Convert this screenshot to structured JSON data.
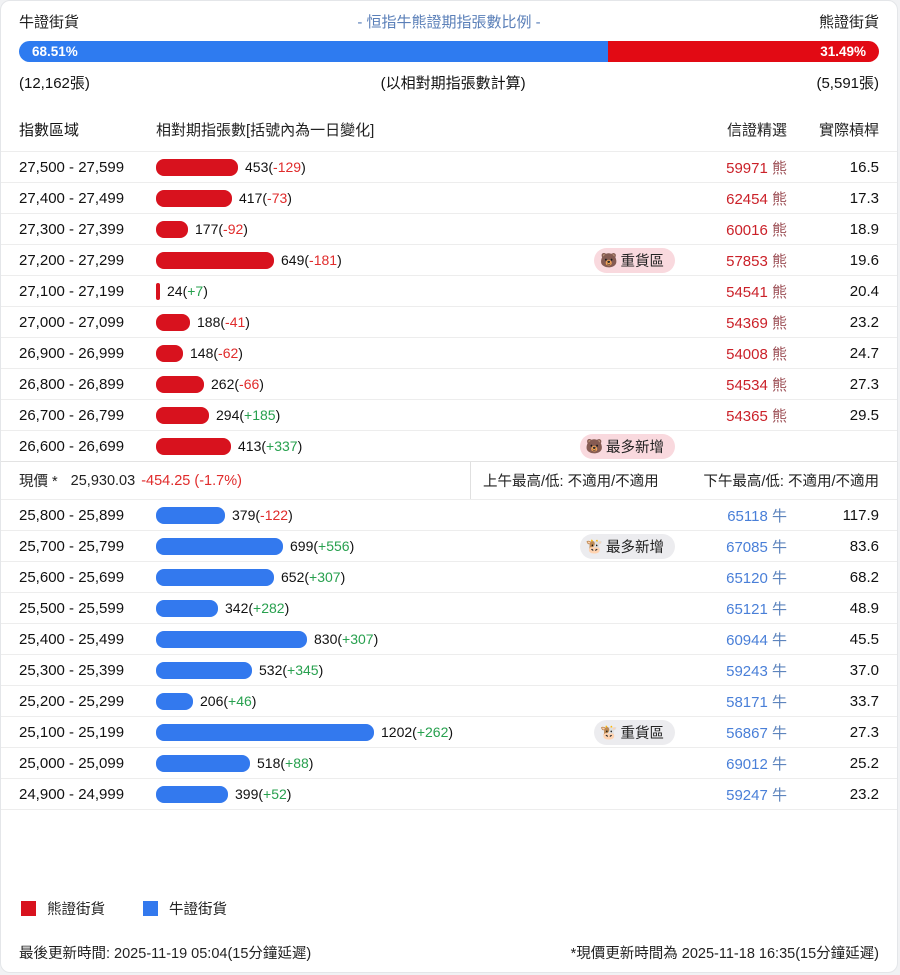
{
  "header": {
    "left_label": "牛證街貨",
    "title": "- 恒指牛熊證期指張數比例 -",
    "right_label": "熊證街貨",
    "bull_pct": "68.51%",
    "bear_pct": "31.49%",
    "bull_contracts": "(12,162張)",
    "center_note": "(以相對期指張數計算)",
    "bear_contracts": "(5,591張)"
  },
  "columns": {
    "range": "指數區域",
    "bars": "相對期指張數[括號內為一日變化]",
    "picks": "信證精選",
    "leverage": "實際槓桿"
  },
  "rows": [
    {
      "range": "27,500 - 27,599",
      "side": "bear",
      "value": 453,
      "change": "-129",
      "code": "59971",
      "code_suffix": "熊",
      "leverage": "16.5"
    },
    {
      "range": "27,400 - 27,499",
      "side": "bear",
      "value": 417,
      "change": "-73",
      "code": "62454",
      "code_suffix": "熊",
      "leverage": "17.3"
    },
    {
      "range": "27,300 - 27,399",
      "side": "bear",
      "value": 177,
      "change": "-92",
      "code": "60016",
      "code_suffix": "熊",
      "leverage": "18.9"
    },
    {
      "range": "27,200 - 27,299",
      "side": "bear",
      "value": 649,
      "change": "-181",
      "badge": {
        "side": "bear",
        "icon": "🐻",
        "label": "重貨區"
      },
      "code": "57853",
      "code_suffix": "熊",
      "leverage": "19.6"
    },
    {
      "range": "27,100 - 27,199",
      "side": "bear",
      "value": 24,
      "change": "+7",
      "code": "54541",
      "code_suffix": "熊",
      "leverage": "20.4"
    },
    {
      "range": "27,000 - 27,099",
      "side": "bear",
      "value": 188,
      "change": "-41",
      "code": "54369",
      "code_suffix": "熊",
      "leverage": "23.2"
    },
    {
      "range": "26,900 - 26,999",
      "side": "bear",
      "value": 148,
      "change": "-62",
      "code": "54008",
      "code_suffix": "熊",
      "leverage": "24.7"
    },
    {
      "range": "26,800 - 26,899",
      "side": "bear",
      "value": 262,
      "change": "-66",
      "code": "54534",
      "code_suffix": "熊",
      "leverage": "27.3"
    },
    {
      "range": "26,700 - 26,799",
      "side": "bear",
      "value": 294,
      "change": "+185",
      "code": "54365",
      "code_suffix": "熊",
      "leverage": "29.5"
    },
    {
      "range": "26,600 - 26,699",
      "side": "bear",
      "value": 413,
      "change": "+337",
      "badge": {
        "side": "bear",
        "icon": "🐻",
        "label": "最多新增"
      }
    },
    {
      "range": "25,800 - 25,899",
      "side": "bull",
      "value": 379,
      "change": "-122",
      "code": "65118",
      "code_suffix": "牛",
      "leverage": "117.9"
    },
    {
      "range": "25,700 - 25,799",
      "side": "bull",
      "value": 699,
      "change": "+556",
      "badge": {
        "side": "bull",
        "icon": "🐮",
        "label": "最多新增"
      },
      "code": "67085",
      "code_suffix": "牛",
      "leverage": "83.6"
    },
    {
      "range": "25,600 - 25,699",
      "side": "bull",
      "value": 652,
      "change": "+307",
      "code": "65120",
      "code_suffix": "牛",
      "leverage": "68.2"
    },
    {
      "range": "25,500 - 25,599",
      "side": "bull",
      "value": 342,
      "change": "+282",
      "code": "65121",
      "code_suffix": "牛",
      "leverage": "48.9"
    },
    {
      "range": "25,400 - 25,499",
      "side": "bull",
      "value": 830,
      "change": "+307",
      "code": "60944",
      "code_suffix": "牛",
      "leverage": "45.5"
    },
    {
      "range": "25,300 - 25,399",
      "side": "bull",
      "value": 532,
      "change": "+345",
      "code": "59243",
      "code_suffix": "牛",
      "leverage": "37.0"
    },
    {
      "range": "25,200 - 25,299",
      "side": "bull",
      "value": 206,
      "change": "+46",
      "code": "58171",
      "code_suffix": "牛",
      "leverage": "33.7"
    },
    {
      "range": "25,100 - 25,199",
      "side": "bull",
      "value": 1202,
      "change": "+262",
      "badge": {
        "side": "bull",
        "icon": "🐮",
        "label": "重貨區"
      },
      "code": "56867",
      "code_suffix": "牛",
      "leverage": "27.3"
    },
    {
      "range": "25,000 - 25,099",
      "side": "bull",
      "value": 518,
      "change": "+88",
      "code": "69012",
      "code_suffix": "牛",
      "leverage": "25.2"
    },
    {
      "range": "24,900 - 24,999",
      "side": "bull",
      "value": 399,
      "change": "+52",
      "code": "59247",
      "code_suffix": "牛",
      "leverage": "23.2"
    }
  ],
  "price_row": {
    "label": "現價 *",
    "price": "25,930.03",
    "change": "-454.25 (-1.7%)",
    "am": "上午最高/低: 不適用/不適用",
    "pm": "下午最高/低: 不適用/不適用"
  },
  "legend": [
    {
      "label": "熊證街貨",
      "color": "#d8121e"
    },
    {
      "label": "牛證街貨",
      "color": "#3379ee"
    }
  ],
  "footer": {
    "last_update": "最後更新時間: 2025-11-19 05:04(15分鐘延遲)",
    "price_update": "*現價更新時間為 2025-11-18 16:35(15分鐘延遲)"
  },
  "colors": {
    "bear": "#d8121e",
    "bull": "#3379ee",
    "positive_change": "#27a04e",
    "negative_change": "#e02b2b",
    "title_blue": "#5a7fb8"
  },
  "chart_data": {
    "type": "bar",
    "orientation": "horizontal",
    "title": "- 恒指牛熊證期指張數比例 -",
    "subtitle": "(以相對期指張數計算)",
    "xlabel": "相對期指張數[括號內為一日變化]",
    "ylabel": "指數區域",
    "xlim": [
      0,
      1250
    ],
    "grid": false,
    "legend_position": "bottom-left",
    "ratio_bar": {
      "bull_pct": 68.51,
      "bear_pct": 31.49,
      "bull_contracts": 12162,
      "bear_contracts": 5591
    },
    "current_price": {
      "value": 25930.03,
      "change": -454.25,
      "change_pct": -1.7
    },
    "series": [
      {
        "name": "熊證街貨",
        "color": "#d8121e",
        "categories": [
          "27,500 - 27,599",
          "27,400 - 27,499",
          "27,300 - 27,399",
          "27,200 - 27,299",
          "27,100 - 27,199",
          "27,000 - 27,099",
          "26,900 - 26,999",
          "26,800 - 26,899",
          "26,700 - 26,799",
          "26,600 - 26,699"
        ],
        "values": [
          453,
          417,
          177,
          649,
          24,
          188,
          148,
          262,
          294,
          413
        ],
        "one_day_change": [
          -129,
          -73,
          -92,
          -181,
          7,
          -41,
          -62,
          -66,
          185,
          337
        ],
        "picked_codes": [
          "59971",
          "62454",
          "60016",
          "57853",
          "54541",
          "54369",
          "54008",
          "54534",
          "54365",
          null
        ],
        "effective_gearing": [
          16.5,
          17.3,
          18.9,
          19.6,
          20.4,
          23.2,
          24.7,
          27.3,
          29.5,
          null
        ]
      },
      {
        "name": "牛證街貨",
        "color": "#3379ee",
        "categories": [
          "25,800 - 25,899",
          "25,700 - 25,799",
          "25,600 - 25,699",
          "25,500 - 25,599",
          "25,400 - 25,499",
          "25,300 - 25,399",
          "25,200 - 25,299",
          "25,100 - 25,199",
          "25,000 - 25,099",
          "24,900 - 24,999"
        ],
        "values": [
          379,
          699,
          652,
          342,
          830,
          532,
          206,
          1202,
          518,
          399
        ],
        "one_day_change": [
          -122,
          556,
          307,
          282,
          307,
          345,
          46,
          262,
          88,
          52
        ],
        "picked_codes": [
          "65118",
          "67085",
          "65120",
          "65121",
          "60944",
          "59243",
          "58171",
          "56867",
          "69012",
          "59247"
        ],
        "effective_gearing": [
          117.9,
          83.6,
          68.2,
          48.9,
          45.5,
          37.0,
          33.7,
          27.3,
          25.2,
          23.2
        ]
      }
    ],
    "annotations": [
      {
        "category": "27,200 - 27,299",
        "side": "bear",
        "label": "重貨區"
      },
      {
        "category": "26,600 - 26,699",
        "side": "bear",
        "label": "最多新增"
      },
      {
        "category": "25,700 - 25,799",
        "side": "bull",
        "label": "最多新增"
      },
      {
        "category": "25,100 - 25,199",
        "side": "bull",
        "label": "重貨區"
      }
    ]
  }
}
